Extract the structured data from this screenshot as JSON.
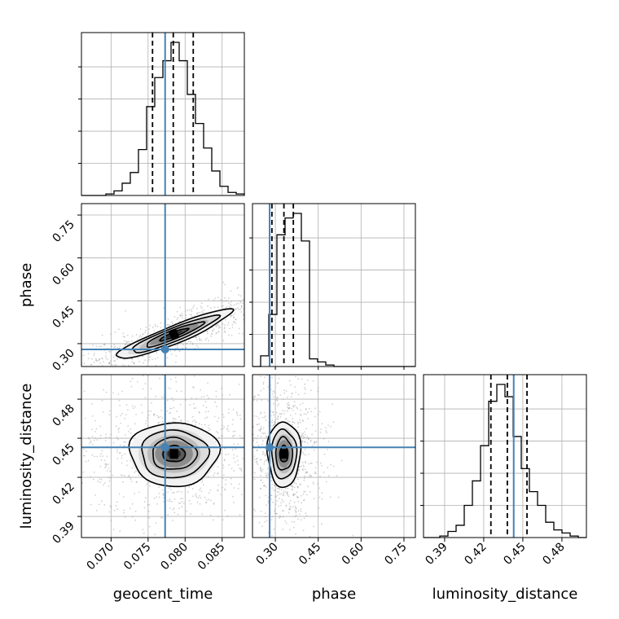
{
  "chart_data": {
    "type": "corner",
    "parameters": [
      "geocent_time",
      "phase",
      "luminosity_distance"
    ],
    "ticks": {
      "geocent_time": [
        0.07,
        0.075,
        0.08,
        0.085
      ],
      "phase": [
        0.3,
        0.45,
        0.6,
        0.75
      ],
      "luminosity_distance": [
        0.39,
        0.42,
        0.45,
        0.48
      ]
    },
    "tick_labels": {
      "geocent_time": [
        "0.070",
        "0.075",
        "0.080",
        "0.085"
      ],
      "phase": [
        "0.30",
        "0.45",
        "0.60",
        "0.75"
      ],
      "luminosity_distance": [
        "0.39",
        "0.42",
        "0.45",
        "0.48"
      ]
    },
    "ranges": {
      "geocent_time": [
        0.066,
        0.088
      ],
      "phase": [
        0.22,
        0.79
      ],
      "luminosity_distance": [
        0.3738,
        0.4988
      ]
    },
    "truths": {
      "geocent_time": 0.0773,
      "phase": 0.28,
      "luminosity_distance": 0.443
    },
    "quantiles": {
      "geocent_time": [
        0.0756,
        0.0784,
        0.0811
      ],
      "phase": [
        0.288,
        0.33,
        0.363
      ],
      "luminosity_distance": [
        0.4255,
        0.4381,
        0.4532
      ]
    },
    "histograms": {
      "geocent_time": {
        "range": [
          0.066,
          0.088
        ],
        "counts": [
          0.0,
          0.0,
          0.0,
          0.01,
          0.03,
          0.08,
          0.15,
          0.3,
          0.58,
          0.77,
          0.88,
          1.0,
          0.88,
          0.66,
          0.47,
          0.31,
          0.16,
          0.06,
          0.02,
          0.01
        ]
      },
      "phase": {
        "range": [
          0.22,
          0.79
        ],
        "counts": [
          0.0,
          0.07,
          0.34,
          0.86,
          0.97,
          1.0,
          0.82,
          0.05,
          0.03,
          0.01,
          0.0,
          0.0,
          0.0,
          0.0,
          0.0,
          0.0,
          0.0,
          0.0,
          0.0,
          0.0
        ]
      },
      "luminosity_distance": {
        "range": [
          0.3738,
          0.4988
        ],
        "counts": [
          0.0,
          0.0,
          0.01,
          0.04,
          0.08,
          0.21,
          0.37,
          0.6,
          0.89,
          1.0,
          0.92,
          0.66,
          0.45,
          0.3,
          0.21,
          0.1,
          0.05,
          0.03,
          0.01,
          0.0
        ]
      }
    },
    "joint": [
      {
        "x": "geocent_time",
        "y": "phase",
        "center": [
          0.0785,
          0.332
        ],
        "spread": [
          0.0031,
          0.035
        ],
        "tilt_deg": -22,
        "contour_levels_sigma": [
          0.5,
          1.0,
          1.5,
          2.0
        ]
      },
      {
        "x": "geocent_time",
        "y": "luminosity_distance",
        "center": [
          0.0785,
          0.438
        ],
        "spread": [
          0.003,
          0.0122
        ],
        "tilt_deg": 0,
        "contour_levels_sigma": [
          0.5,
          1.0,
          1.5,
          2.0
        ]
      },
      {
        "x": "phase",
        "y": "luminosity_distance",
        "center": [
          0.33,
          0.438
        ],
        "spread": [
          0.029,
          0.0125
        ],
        "tilt_deg": 0,
        "contour_levels_sigma": [
          0.5,
          1.0,
          1.5,
          2.0
        ]
      }
    ],
    "grid": true
  },
  "colors": {
    "truth": "#4682b4",
    "contour": "#000000",
    "scatter": "#9a9a9a"
  }
}
